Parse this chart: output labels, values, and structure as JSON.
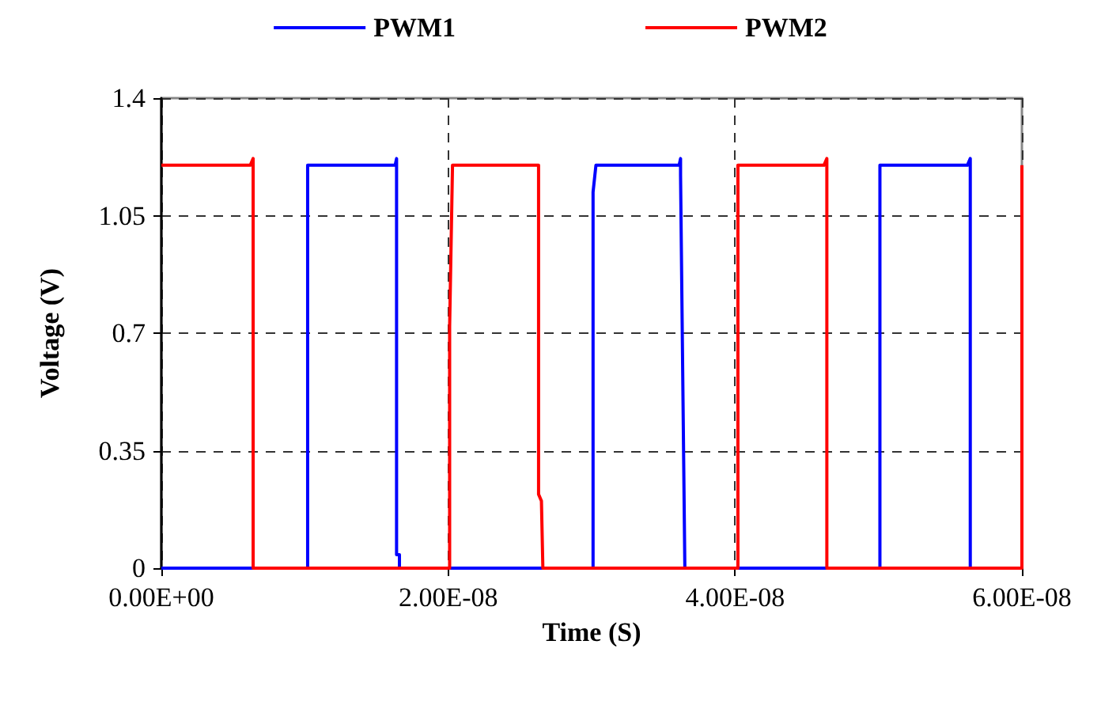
{
  "chart_data": {
    "type": "line",
    "xlabel": "Time (S)",
    "ylabel": "Voltage (V)",
    "xlim": [
      0,
      6e-08
    ],
    "xticks": [
      {
        "value": 0,
        "label": "0.00E+00"
      },
      {
        "value": 2e-08,
        "label": "2.00E-08"
      },
      {
        "value": 4e-08,
        "label": "4.00E-08"
      },
      {
        "value": 6e-08,
        "label": "6.00E-08"
      }
    ],
    "ylim": [
      0,
      1.4
    ],
    "yticks": [
      0,
      0.35,
      0.7,
      1.05,
      1.4
    ],
    "grid": true,
    "legend": "top",
    "series": [
      {
        "name": "PWM1",
        "color": "#0000ff",
        "x": [
          0,
          1.02e-08,
          1.02e-08,
          1.63e-08,
          1.64e-08,
          1.64e-08,
          1.66e-08,
          1.66e-08,
          3.01e-08,
          3.01e-08,
          3.03e-08,
          3.61e-08,
          3.62e-08,
          3.62e-08,
          3.65e-08,
          5.01e-08,
          5.01e-08,
          5.62e-08,
          5.64e-08,
          5.64e-08,
          6e-08
        ],
        "values": [
          0,
          0,
          1.2,
          1.2,
          1.22,
          0.04,
          0.04,
          0,
          0,
          1.12,
          1.2,
          1.2,
          1.22,
          1.17,
          0,
          0,
          1.2,
          1.2,
          1.22,
          0,
          0
        ]
      },
      {
        "name": "PWM2",
        "color": "#ff0000",
        "x": [
          0,
          6.2e-09,
          6.4e-09,
          6.4e-09,
          2.01e-08,
          2.01e-08,
          2.03e-08,
          2.63e-08,
          2.63e-08,
          2.65e-08,
          2.66e-08,
          4.02e-08,
          4.02e-08,
          4.62e-08,
          4.64e-08,
          4.64e-08,
          6e-08,
          6e-08
        ],
        "values": [
          1.2,
          1.2,
          1.22,
          0,
          0,
          0.72,
          1.2,
          1.2,
          0.22,
          0.2,
          0,
          0,
          1.2,
          1.2,
          1.22,
          0,
          0,
          1.2
        ]
      }
    ]
  }
}
